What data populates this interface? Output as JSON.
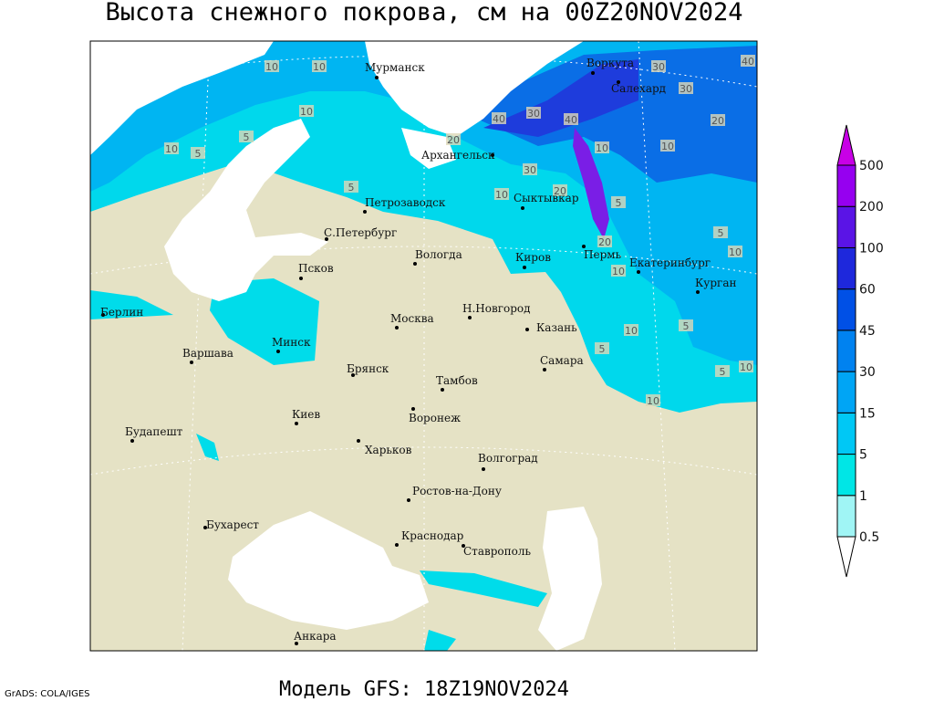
{
  "title": "Высота снежного покрова, см на 00Z20NOV2024",
  "map": {
    "cities": [
      "Мурманск",
      "Воркута",
      "Салехард",
      "Архангельск",
      "Петрозаводск",
      "Сыктывкар",
      "С.Петербург",
      "Вологда",
      "Киров",
      "Пермь",
      "Екатеринбург",
      "Псков",
      "Курган",
      "Берлин",
      "Н.Новгород",
      "Москва",
      "Казань",
      "Минск",
      "Варшава",
      "Самара",
      "Брянск",
      "Тамбов",
      "Киев",
      "Воронеж",
      "Будапешт",
      "Харьков",
      "Волгоград",
      "Ростов-на-Дону",
      "Бухарест",
      "Краснодар",
      "Ставрополь",
      "Анкара"
    ],
    "contour_labels": [
      10,
      10,
      40,
      30,
      30,
      40,
      30,
      40,
      20,
      20,
      10,
      10,
      30,
      10,
      5,
      10,
      5,
      10,
      20,
      5,
      5,
      5,
      20,
      10,
      10,
      10,
      5,
      5,
      10,
      5,
      10
    ]
  },
  "colorbar": {
    "levels": [
      0.5,
      1,
      5,
      15,
      30,
      45,
      60,
      100,
      200,
      500
    ],
    "colors": [
      "#ffffff",
      "#a0f5f5",
      "#00e6e6",
      "#00c8f5",
      "#00a5f5",
      "#0082f0",
      "#0050e6",
      "#1e28dc",
      "#5a14e6",
      "#9600f0",
      "#c800e6"
    ]
  },
  "footer": {
    "credit": "GrADS: COLA/IGES",
    "model": "Модель GFS: 18Z19NOV2024"
  }
}
